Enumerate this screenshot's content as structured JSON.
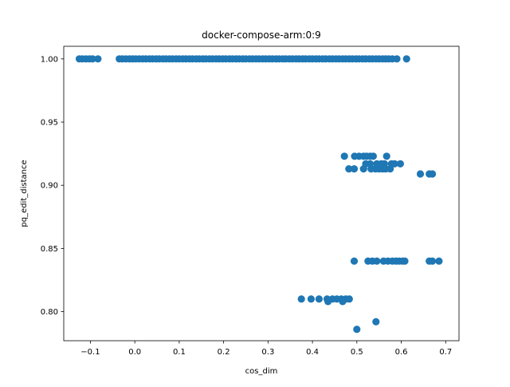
{
  "chart_data": {
    "type": "scatter",
    "title": "docker-compose-arm:0:9",
    "xlabel": "cos_dim",
    "ylabel": "pq_edit_distance",
    "xlim": [
      -0.16,
      0.73
    ],
    "ylim": [
      0.777,
      1.01
    ],
    "x_ticks": [
      -0.1,
      0.0,
      0.1,
      0.2,
      0.3,
      0.4,
      0.5,
      0.6,
      0.7
    ],
    "x_tick_labels": [
      "−0.1",
      "0.0",
      "0.1",
      "0.2",
      "0.3",
      "0.4",
      "0.5",
      "0.6",
      "0.7"
    ],
    "y_ticks": [
      0.8,
      0.85,
      0.9,
      0.95,
      1.0
    ],
    "y_tick_labels": [
      "0.80",
      "0.85",
      "0.90",
      "0.95",
      "1.00"
    ],
    "grid": false,
    "marker_color": "#1f77b4",
    "series": [
      {
        "points": [
          [
            -0.125,
            1.0
          ],
          [
            -0.118,
            1.0
          ],
          [
            -0.11,
            1.0
          ],
          [
            -0.102,
            1.0
          ],
          [
            -0.095,
            1.0
          ],
          [
            -0.083,
            1.0
          ],
          [
            -0.035,
            1.0
          ],
          [
            -0.028,
            1.0
          ],
          [
            -0.02,
            1.0
          ],
          [
            -0.012,
            1.0
          ],
          [
            -0.005,
            1.0
          ],
          [
            0.002,
            1.0
          ],
          [
            0.01,
            1.0
          ],
          [
            0.018,
            1.0
          ],
          [
            0.025,
            1.0
          ],
          [
            0.033,
            1.0
          ],
          [
            0.04,
            1.0
          ],
          [
            0.048,
            1.0
          ],
          [
            0.055,
            1.0
          ],
          [
            0.063,
            1.0
          ],
          [
            0.07,
            1.0
          ],
          [
            0.078,
            1.0
          ],
          [
            0.085,
            1.0
          ],
          [
            0.093,
            1.0
          ],
          [
            0.1,
            1.0
          ],
          [
            0.108,
            1.0
          ],
          [
            0.115,
            1.0
          ],
          [
            0.123,
            1.0
          ],
          [
            0.13,
            1.0
          ],
          [
            0.138,
            1.0
          ],
          [
            0.145,
            1.0
          ],
          [
            0.153,
            1.0
          ],
          [
            0.16,
            1.0
          ],
          [
            0.168,
            1.0
          ],
          [
            0.175,
            1.0
          ],
          [
            0.183,
            1.0
          ],
          [
            0.19,
            1.0
          ],
          [
            0.198,
            1.0
          ],
          [
            0.205,
            1.0
          ],
          [
            0.213,
            1.0
          ],
          [
            0.22,
            1.0
          ],
          [
            0.228,
            1.0
          ],
          [
            0.235,
            1.0
          ],
          [
            0.243,
            1.0
          ],
          [
            0.25,
            1.0
          ],
          [
            0.258,
            1.0
          ],
          [
            0.265,
            1.0
          ],
          [
            0.273,
            1.0
          ],
          [
            0.28,
            1.0
          ],
          [
            0.288,
            1.0
          ],
          [
            0.295,
            1.0
          ],
          [
            0.303,
            1.0
          ],
          [
            0.31,
            1.0
          ],
          [
            0.318,
            1.0
          ],
          [
            0.325,
            1.0
          ],
          [
            0.333,
            1.0
          ],
          [
            0.34,
            1.0
          ],
          [
            0.348,
            1.0
          ],
          [
            0.355,
            1.0
          ],
          [
            0.363,
            1.0
          ],
          [
            0.37,
            1.0
          ],
          [
            0.378,
            1.0
          ],
          [
            0.385,
            1.0
          ],
          [
            0.393,
            1.0
          ],
          [
            0.4,
            1.0
          ],
          [
            0.408,
            1.0
          ],
          [
            0.415,
            1.0
          ],
          [
            0.423,
            1.0
          ],
          [
            0.43,
            1.0
          ],
          [
            0.438,
            1.0
          ],
          [
            0.445,
            1.0
          ],
          [
            0.453,
            1.0
          ],
          [
            0.46,
            1.0
          ],
          [
            0.468,
            1.0
          ],
          [
            0.475,
            1.0
          ],
          [
            0.483,
            1.0
          ],
          [
            0.49,
            1.0
          ],
          [
            0.498,
            1.0
          ],
          [
            0.505,
            1.0
          ],
          [
            0.513,
            1.0
          ],
          [
            0.52,
            1.0
          ],
          [
            0.528,
            1.0
          ],
          [
            0.535,
            1.0
          ],
          [
            0.543,
            1.0
          ],
          [
            0.55,
            1.0
          ],
          [
            0.558,
            1.0
          ],
          [
            0.565,
            1.0
          ],
          [
            0.572,
            1.0
          ],
          [
            0.58,
            1.0
          ],
          [
            0.59,
            1.0
          ],
          [
            0.612,
            1.0
          ],
          [
            0.472,
            0.923
          ],
          [
            0.495,
            0.923
          ],
          [
            0.505,
            0.923
          ],
          [
            0.515,
            0.923
          ],
          [
            0.522,
            0.923
          ],
          [
            0.53,
            0.923
          ],
          [
            0.537,
            0.923
          ],
          [
            0.567,
            0.923
          ],
          [
            0.482,
            0.913
          ],
          [
            0.494,
            0.913
          ],
          [
            0.515,
            0.913
          ],
          [
            0.532,
            0.913
          ],
          [
            0.542,
            0.913
          ],
          [
            0.55,
            0.913
          ],
          [
            0.558,
            0.913
          ],
          [
            0.565,
            0.913
          ],
          [
            0.575,
            0.913
          ],
          [
            0.52,
            0.917
          ],
          [
            0.53,
            0.917
          ],
          [
            0.545,
            0.917
          ],
          [
            0.555,
            0.917
          ],
          [
            0.562,
            0.917
          ],
          [
            0.578,
            0.917
          ],
          [
            0.585,
            0.917
          ],
          [
            0.598,
            0.917
          ],
          [
            0.643,
            0.909
          ],
          [
            0.663,
            0.909
          ],
          [
            0.67,
            0.909
          ],
          [
            0.494,
            0.84
          ],
          [
            0.525,
            0.84
          ],
          [
            0.535,
            0.84
          ],
          [
            0.545,
            0.84
          ],
          [
            0.56,
            0.84
          ],
          [
            0.57,
            0.84
          ],
          [
            0.58,
            0.84
          ],
          [
            0.588,
            0.84
          ],
          [
            0.595,
            0.84
          ],
          [
            0.603,
            0.84
          ],
          [
            0.608,
            0.84
          ],
          [
            0.663,
            0.84
          ],
          [
            0.67,
            0.84
          ],
          [
            0.685,
            0.84
          ],
          [
            0.375,
            0.81
          ],
          [
            0.397,
            0.81
          ],
          [
            0.415,
            0.81
          ],
          [
            0.433,
            0.81
          ],
          [
            0.445,
            0.81
          ],
          [
            0.455,
            0.81
          ],
          [
            0.465,
            0.81
          ],
          [
            0.475,
            0.81
          ],
          [
            0.483,
            0.81
          ],
          [
            0.435,
            0.808
          ],
          [
            0.468,
            0.808
          ],
          [
            0.543,
            0.792
          ],
          [
            0.5,
            0.786
          ]
        ]
      }
    ]
  }
}
